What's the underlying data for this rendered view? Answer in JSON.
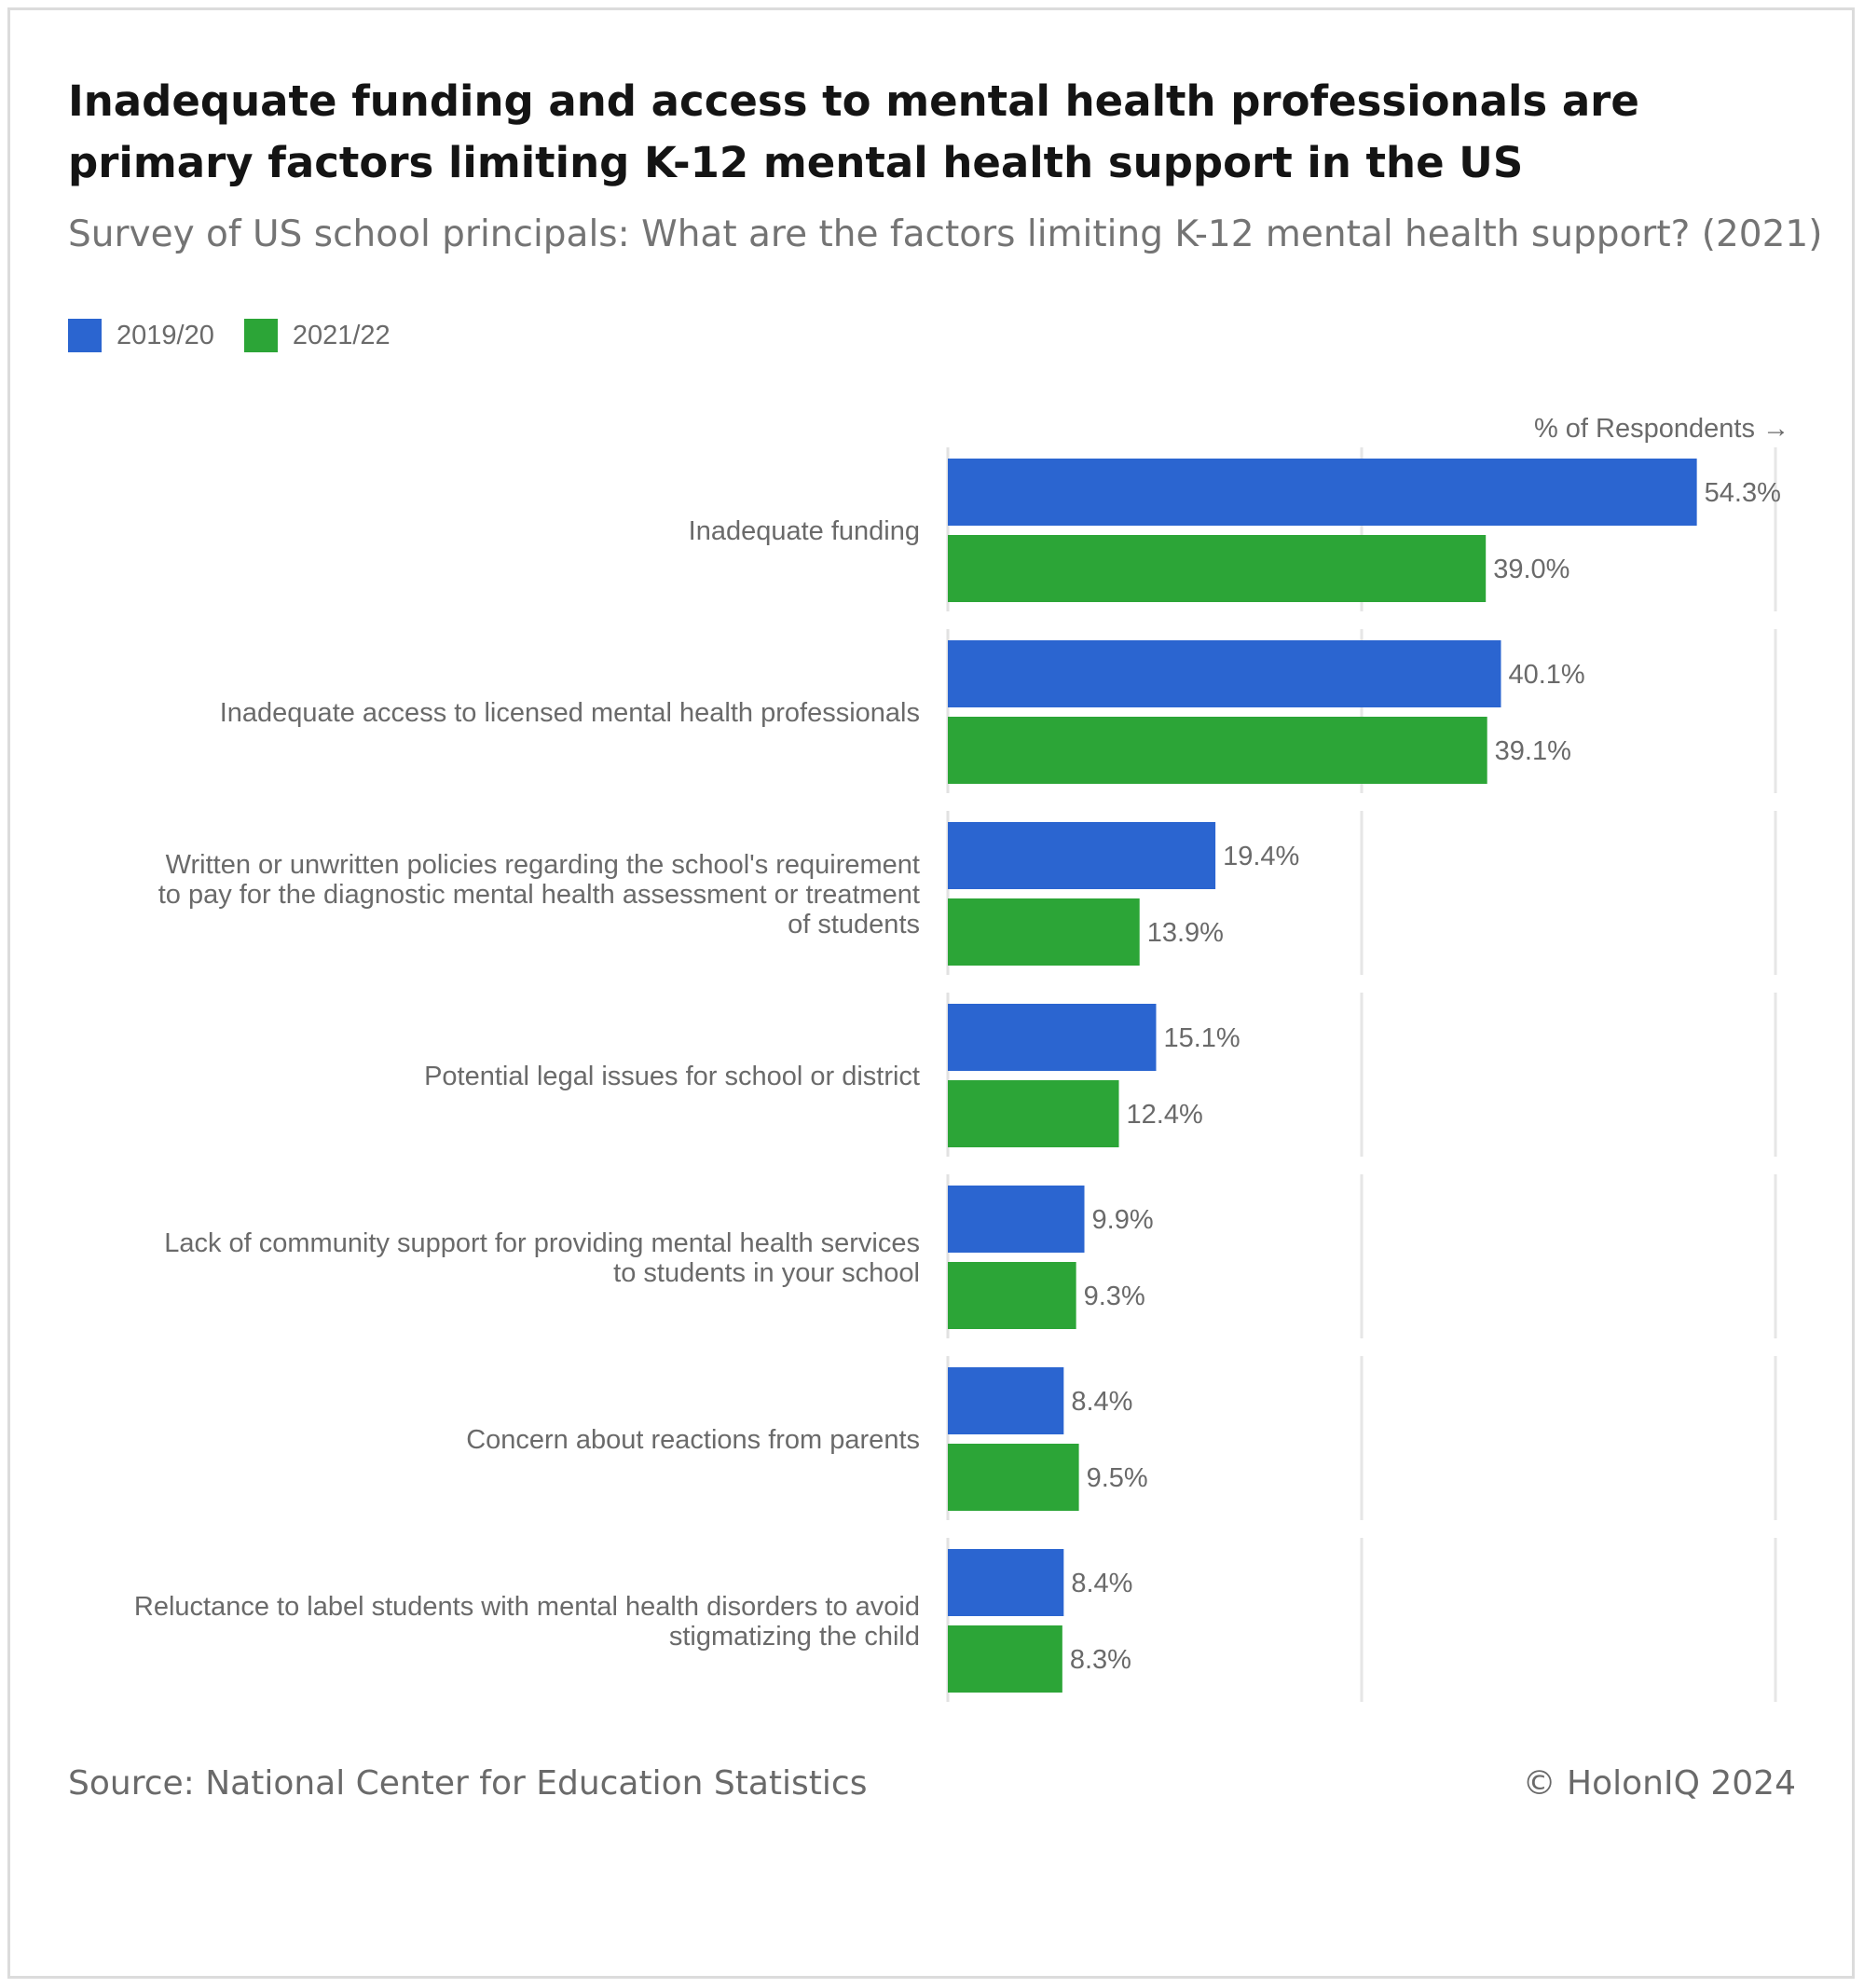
{
  "chart_data": {
    "type": "bar",
    "orientation": "horizontal",
    "title": "Inadequate funding and access to mental health professionals are primary factors limiting K-12 mental health support in the US",
    "subtitle": "Survey of US school principals: What are the factors limiting K-12 mental health support? (2021)",
    "axis_label": "% of Respondents →",
    "xlim": [
      0,
      60
    ],
    "grid": true,
    "legend_position": "top-left",
    "categories": [
      [
        "Inadequate funding"
      ],
      [
        "Inadequate access to licensed mental health professionals"
      ],
      [
        "Written or unwritten policies regarding the school's requirement",
        "to pay for the diagnostic mental health assessment or treatment",
        "of students"
      ],
      [
        "Potential legal issues for school or district"
      ],
      [
        "Lack of community support for providing mental health services",
        "to students in your school"
      ],
      [
        "Concern about reactions from parents"
      ],
      [
        "Reluctance to label students with mental health disorders to avoid",
        "stigmatizing the child"
      ]
    ],
    "series": [
      {
        "name": "2019/20",
        "color": "#2b65d0",
        "values": [
          54.3,
          40.1,
          19.4,
          15.1,
          9.9,
          8.4,
          8.4
        ],
        "labels": [
          "54.3%",
          "40.1%",
          "19.4%",
          "15.1%",
          "9.9%",
          "8.4%",
          "8.4%"
        ]
      },
      {
        "name": "2021/22",
        "color": "#2ca537",
        "values": [
          39.0,
          39.1,
          13.9,
          12.4,
          9.3,
          9.5,
          8.3
        ],
        "labels": [
          "39.0%",
          "39.1%",
          "13.9%",
          "12.4%",
          "9.3%",
          "9.5%",
          "8.3%"
        ]
      }
    ]
  },
  "footer": {
    "source": "Source: National Center for Education Statistics",
    "credit": "© HolonIQ 2024"
  }
}
